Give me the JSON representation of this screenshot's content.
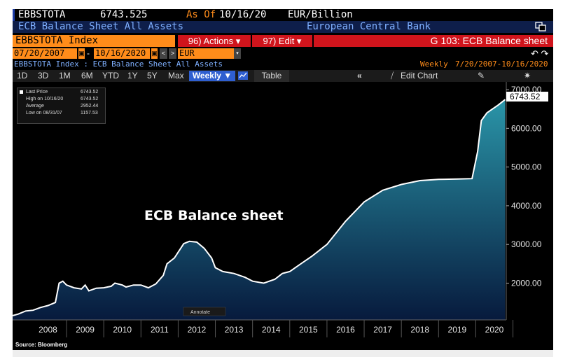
{
  "header": {
    "ticker": "EBBSTOTA",
    "price": "6743.525",
    "as_of_label": "As Of",
    "as_of_date": "10/16/20",
    "units": "EUR/Billion",
    "description": "ECB Balance Sheet All Assets",
    "source_name": "European Central Bank",
    "security": "EBBSTOTA Index",
    "actions_label": "96) Actions ▾",
    "edit_label": "97) Edit ▾",
    "page_title": "G 103: ECB Balance sheet",
    "start_date": "07/20/2007",
    "end_date": "10/16/2020",
    "currency": "EUR",
    "subtitle": "EBBSTOTA Index : ECB Balance Sheet All Assets",
    "frequency": "Weekly",
    "range_text": "7/20/2007-10/16/2020"
  },
  "toolbar": {
    "periods": [
      "1D",
      "3D",
      "1M",
      "6M",
      "YTD",
      "1Y",
      "5Y",
      "Max"
    ],
    "weekly_label": "Weekly ▼",
    "table_label": "Table",
    "edit_chart_label": "Edit Chart",
    "annotate_label": "Annotate"
  },
  "legend": {
    "last_label": "Last Price",
    "last_value": "6743.52",
    "high_label": "High on 10/16/20",
    "high_value": "6743.52",
    "avg_label": "Average",
    "avg_value": "2952.44",
    "low_label": "Low on 08/31/07",
    "low_value": "1157.53"
  },
  "source": "Source: Bloomberg",
  "colors": {
    "header_blue": "#1b3ba6",
    "orange": "#ff8c1a",
    "red": "#d0141c",
    "line": "#ffffff",
    "fill_top": "#2a95a8",
    "fill_bottom": "#071a3d"
  },
  "chart_data": {
    "type": "area",
    "title": "ECB Balance sheet",
    "xlabel": "",
    "ylabel": "",
    "ylim": [
      1050,
      7200
    ],
    "yticks": [
      "2000.00",
      "3000.00",
      "4000.00",
      "5000.00",
      "6000.00",
      "7000.00"
    ],
    "xticks": [
      "2008",
      "2009",
      "2010",
      "2011",
      "2012",
      "2013",
      "2014",
      "2015",
      "2016",
      "2017",
      "2018",
      "2019",
      "2020"
    ],
    "last_value_label": "6743.52",
    "series": [
      {
        "x": [
          2007.55,
          2007.7,
          2007.9,
          2008.1,
          2008.3,
          2008.5,
          2008.7,
          2008.8,
          2008.9,
          2009.0,
          2009.2,
          2009.4,
          2009.5,
          2009.6,
          2009.8,
          2010.0,
          2010.2,
          2010.3,
          2010.5,
          2010.6,
          2010.8,
          2011.0,
          2011.2,
          2011.4,
          2011.6,
          2011.7,
          2011.9,
          2012.0,
          2012.15,
          2012.3,
          2012.5,
          2012.7,
          2012.9,
          2013.0,
          2013.2,
          2013.5,
          2013.8,
          2014.0,
          2014.3,
          2014.6,
          2014.8,
          2015.0,
          2015.3,
          2015.6,
          2016.0,
          2016.5,
          2017.0,
          2017.5,
          2018.0,
          2018.5,
          2019.0,
          2019.5,
          2019.9,
          2020.05,
          2020.15,
          2020.3,
          2020.45,
          2020.6,
          2020.79
        ],
        "y": [
          1160,
          1200,
          1280,
          1300,
          1370,
          1420,
          1500,
          2000,
          2050,
          1950,
          1880,
          1850,
          1950,
          1800,
          1870,
          1880,
          1920,
          2000,
          1950,
          1900,
          1950,
          1950,
          1880,
          1980,
          2200,
          2500,
          2650,
          2800,
          3020,
          3080,
          3060,
          2900,
          2650,
          2400,
          2300,
          2250,
          2150,
          2050,
          2000,
          2100,
          2250,
          2300,
          2500,
          2700,
          3000,
          3600,
          4100,
          4400,
          4550,
          4650,
          4680,
          4690,
          4700,
          5400,
          6200,
          6400,
          6500,
          6600,
          6743.52
        ]
      }
    ]
  }
}
